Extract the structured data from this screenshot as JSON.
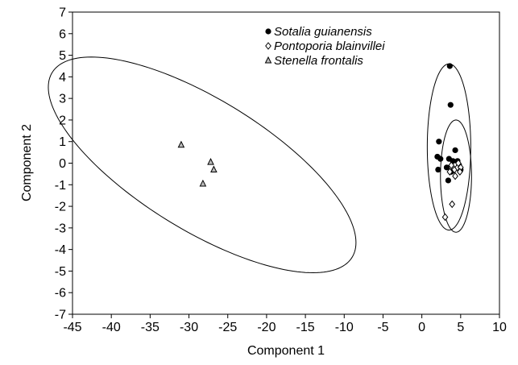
{
  "chart_data": {
    "type": "scatter",
    "title": "",
    "xlabel": "Component 1",
    "ylabel": "Component 2",
    "xlim": [
      -45,
      10
    ],
    "ylim": [
      -7,
      7
    ],
    "xticks": [
      -45,
      -40,
      -35,
      -30,
      -25,
      -20,
      -15,
      -10,
      -5,
      0,
      5,
      10
    ],
    "yticks": [
      -7,
      -6,
      -5,
      -4,
      -3,
      -2,
      -1,
      0,
      1,
      2,
      3,
      4,
      5,
      6,
      7
    ],
    "grid": false,
    "legend_position": "top-center",
    "series": [
      {
        "name": "Sotalia guianensis",
        "marker": "filled-circle",
        "color": "#000000",
        "points": [
          [
            3.6,
            4.5
          ],
          [
            3.7,
            2.7
          ],
          [
            2.2,
            1.0
          ],
          [
            2.0,
            0.3
          ],
          [
            2.4,
            0.2
          ],
          [
            2.1,
            -0.3
          ],
          [
            4.3,
            0.6
          ],
          [
            3.5,
            0.2
          ],
          [
            4.0,
            0.1
          ],
          [
            4.6,
            0.1
          ],
          [
            3.2,
            -0.2
          ],
          [
            3.8,
            -0.4
          ],
          [
            3.4,
            -0.8
          ],
          [
            4.8,
            -0.1
          ],
          [
            5.0,
            -0.3
          ]
        ]
      },
      {
        "name": "Pontoporia blainvillei",
        "marker": "open-diamond",
        "color": "#000000",
        "points": [
          [
            3.8,
            -0.1
          ],
          [
            4.2,
            -0.3
          ],
          [
            4.6,
            -0.2
          ],
          [
            5.0,
            -0.2
          ],
          [
            3.6,
            -0.4
          ],
          [
            4.3,
            -0.6
          ],
          [
            4.9,
            -0.4
          ],
          [
            3.9,
            -1.9
          ],
          [
            3.0,
            -2.5
          ],
          [
            4.7,
            0.0
          ]
        ]
      },
      {
        "name": "Stenella frontalis",
        "marker": "open-triangle",
        "color": "#000000",
        "points": [
          [
            -31.0,
            0.85
          ],
          [
            -27.2,
            0.05
          ],
          [
            -26.8,
            -0.3
          ],
          [
            -28.2,
            -0.95
          ]
        ]
      }
    ],
    "ellipses": [
      {
        "group": "Stenella frontalis",
        "center": [
          -28.3,
          -0.08
        ],
        "semi_major": 20.15,
        "semi_minor": 3.41,
        "angle_deg": -10.6
      },
      {
        "group": "Sotalia guianensis",
        "center": [
          3.5,
          0.75
        ],
        "semi_major": 3.85,
        "semi_minor": 2.8,
        "angle_deg": 90
      },
      {
        "group": "Pontoporia blainvillei",
        "center": [
          4.4,
          -0.6
        ],
        "semi_major": 2.6,
        "semi_minor": 2.0,
        "angle_deg": 90
      }
    ]
  }
}
